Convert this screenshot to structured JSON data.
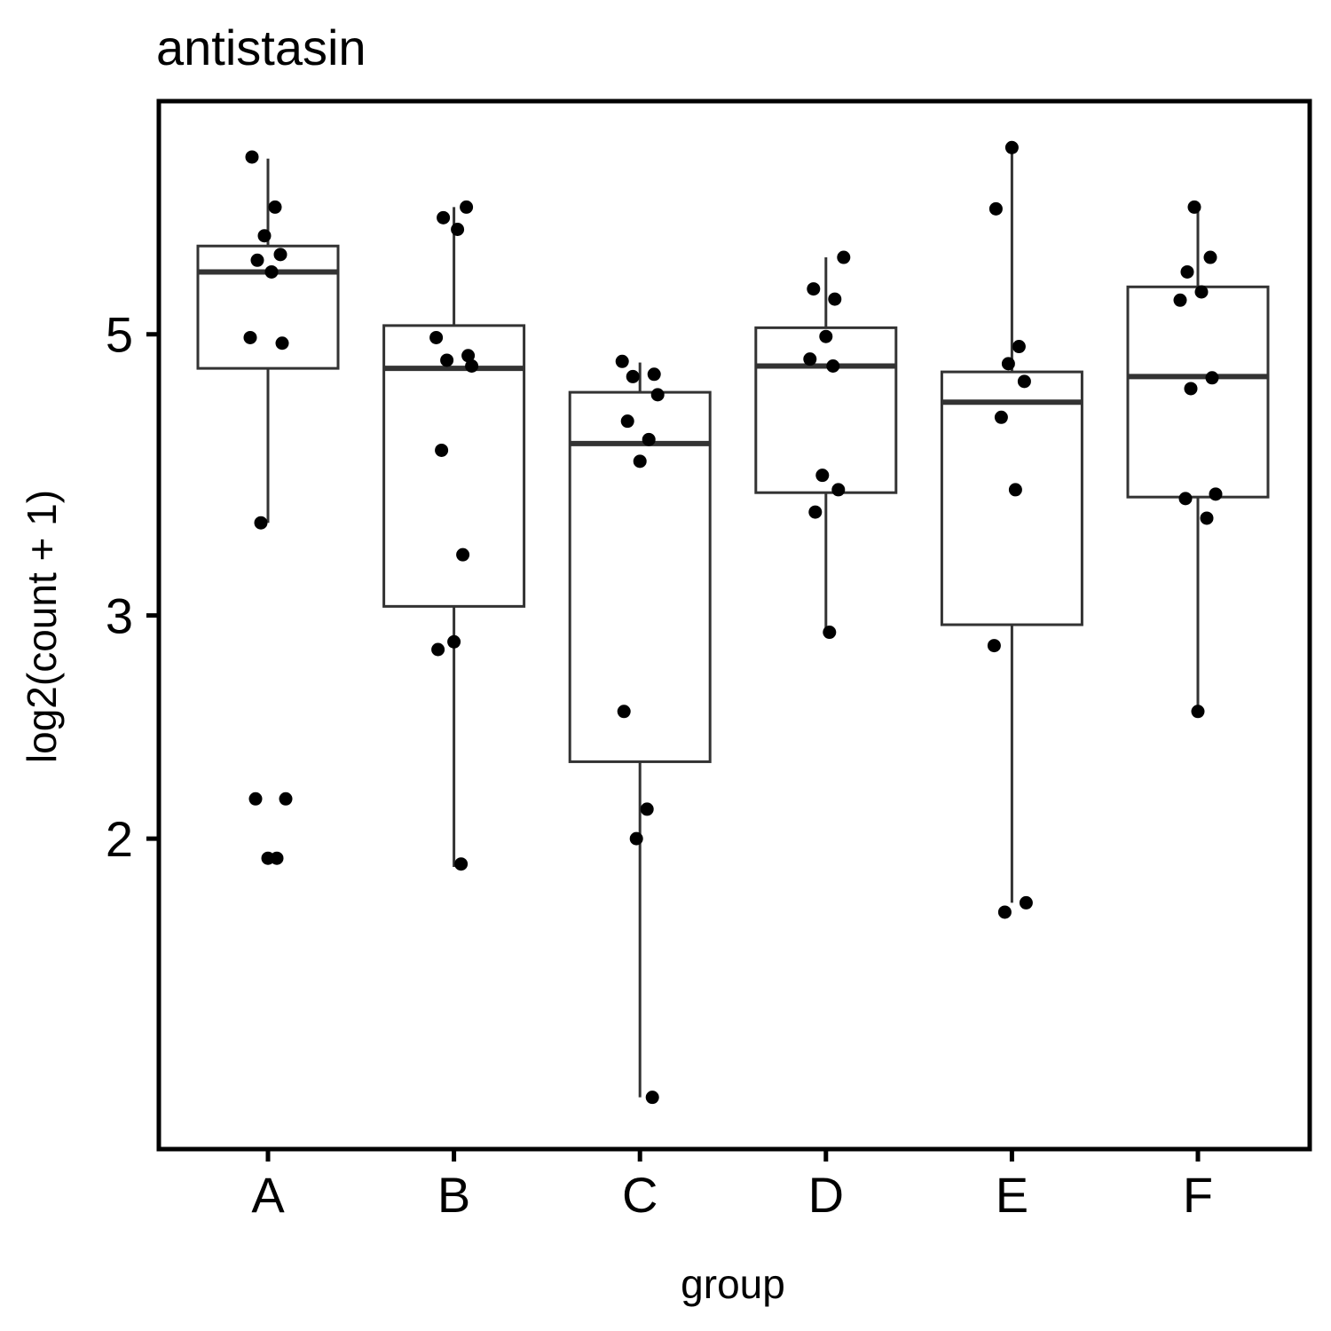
{
  "chart_data": {
    "type": "box",
    "title": "antistasin",
    "xlabel": "group",
    "ylabel": "log2(count + 1)",
    "y_scale": "log",
    "y_ticks": [
      2,
      3,
      5
    ],
    "ylim": [
      1.2,
      7.3
    ],
    "grid": false,
    "categories": [
      "A",
      "B",
      "C",
      "D",
      "E",
      "F"
    ],
    "boxes": [
      {
        "group": "A",
        "whisker_low": 3.55,
        "q1": 4.7,
        "median": 5.6,
        "q3": 5.87,
        "whisker_high": 6.88
      },
      {
        "group": "B",
        "whisker_low": 1.9,
        "q1": 3.05,
        "median": 4.7,
        "q3": 5.08,
        "whisker_high": 6.3
      },
      {
        "group": "C",
        "whisker_low": 1.25,
        "q1": 2.3,
        "median": 4.1,
        "q3": 4.5,
        "whisker_high": 4.75
      },
      {
        "group": "D",
        "whisker_low": 2.9,
        "q1": 3.75,
        "median": 4.72,
        "q3": 5.06,
        "whisker_high": 5.75
      },
      {
        "group": "E",
        "whisker_low": 1.78,
        "q1": 2.95,
        "median": 4.42,
        "q3": 4.67,
        "whisker_high": 7.0
      },
      {
        "group": "F",
        "whisker_low": 2.5,
        "q1": 3.72,
        "median": 4.63,
        "q3": 5.45,
        "whisker_high": 6.3
      }
    ],
    "points": [
      {
        "group": "A",
        "values": [
          6.9,
          6.3,
          5.98,
          5.78,
          5.72,
          5.6,
          4.97,
          4.92,
          3.55,
          2.15,
          2.15,
          1.93,
          1.93
        ]
      },
      {
        "group": "B",
        "values": [
          6.3,
          6.18,
          6.05,
          4.97,
          4.81,
          4.77,
          4.72,
          4.05,
          3.35,
          2.86,
          2.82,
          1.91
        ]
      },
      {
        "group": "C",
        "values": [
          4.76,
          4.65,
          4.63,
          4.48,
          4.27,
          4.13,
          3.97,
          2.52,
          2.11,
          2.0,
          1.25
        ]
      },
      {
        "group": "D",
        "values": [
          5.75,
          5.43,
          5.33,
          4.98,
          4.78,
          4.72,
          3.87,
          3.77,
          3.62,
          2.91
        ]
      },
      {
        "group": "E",
        "values": [
          7.02,
          6.28,
          4.89,
          4.74,
          4.59,
          4.3,
          3.77,
          2.84,
          1.78,
          1.75
        ]
      },
      {
        "group": "F",
        "values": [
          6.3,
          5.75,
          5.6,
          5.4,
          5.32,
          4.62,
          4.53,
          3.74,
          3.71,
          3.58,
          2.52
        ]
      }
    ]
  }
}
